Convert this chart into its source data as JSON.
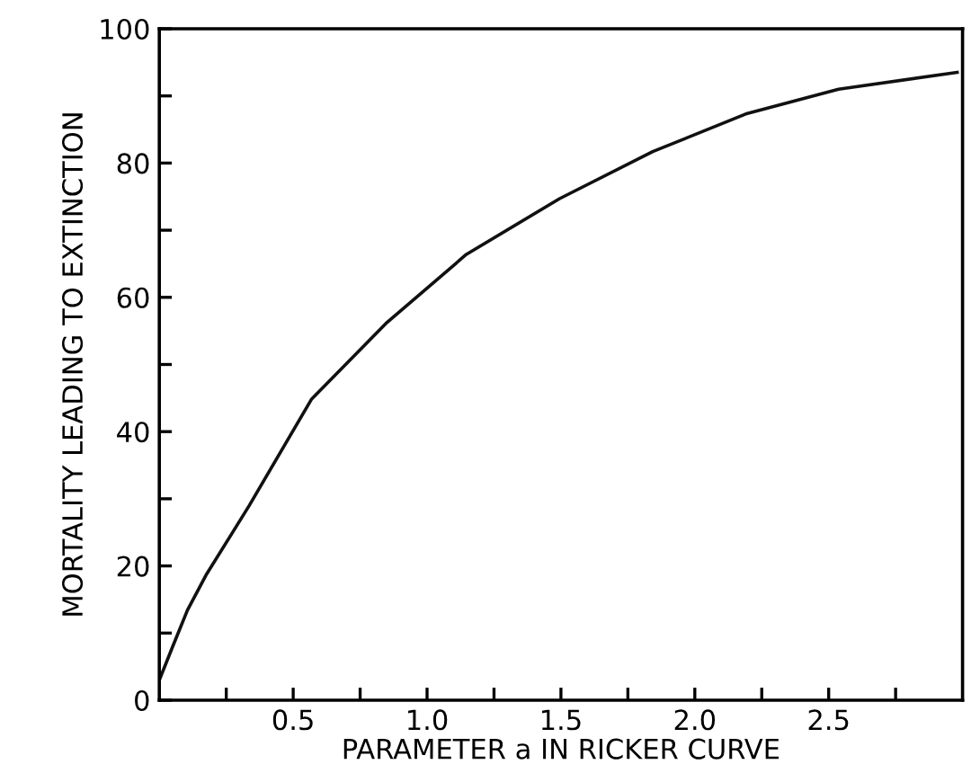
{
  "chart_data": {
    "type": "line",
    "xlabel": "PARAMETER a IN RICKER CURVE",
    "ylabel": "MORTALITY LEADING TO EXTINCTION",
    "x": [
      0,
      0.05,
      0.105,
      0.174,
      0.336,
      0.568,
      0.846,
      1.147,
      1.495,
      1.843,
      2.19,
      2.537,
      2.98
    ],
    "series": [
      {
        "color": "#111111",
        "values": [
          3,
          8,
          13.4,
          18.6,
          29,
          44.8,
          56.1,
          66.4,
          74.7,
          81.7,
          87.3,
          91,
          93.5
        ]
      }
    ],
    "xlim": [
      0,
      3
    ],
    "xticks": [
      {
        "value": 0.25,
        "label": null
      },
      0.5,
      {
        "value": 0.75,
        "label": null
      },
      {
        "value": 1.0,
        "label": "1.0"
      },
      {
        "value": 1.25,
        "label": null
      },
      1.5,
      {
        "value": 1.75,
        "label": null
      },
      {
        "value": 2.0,
        "label": "2.0"
      },
      {
        "value": 2.25,
        "label": null
      },
      2.5,
      {
        "value": 2.75,
        "label": null
      }
    ],
    "ylim": [
      0,
      100
    ],
    "yticks": [
      0,
      {
        "value": 10,
        "label": null
      },
      20,
      {
        "value": 30,
        "label": null
      },
      40,
      {
        "value": 50,
        "label": null
      },
      60,
      {
        "value": 70,
        "label": null
      },
      80,
      {
        "value": 90,
        "label": null
      },
      100
    ],
    "marker": "none",
    "line_style": "solid"
  }
}
